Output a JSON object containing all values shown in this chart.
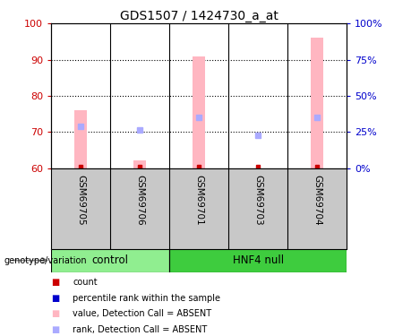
{
  "title": "GDS1507 / 1424730_a_at",
  "samples": [
    "GSM69705",
    "GSM69706",
    "GSM69701",
    "GSM69703",
    "GSM69704"
  ],
  "ylim_left": [
    60,
    100
  ],
  "ylim_right": [
    0,
    100
  ],
  "yticks_left": [
    60,
    70,
    80,
    90,
    100
  ],
  "yticks_right": [
    0,
    25,
    50,
    75,
    100
  ],
  "ytick_labels_right": [
    "0%",
    "25%",
    "50%",
    "75%",
    "100%"
  ],
  "grid_lines": [
    70,
    80,
    90
  ],
  "bar_bottoms": [
    60,
    60,
    60,
    60,
    60
  ],
  "bar_tops": [
    76,
    62,
    91,
    60,
    96
  ],
  "bar_color": "#FFB6C1",
  "blue_square_y": [
    71.5,
    70.5,
    74.0,
    69.0,
    74.0
  ],
  "red_square_y": [
    60.3,
    60.3,
    60.3,
    60.3,
    60.3
  ],
  "control_color": "#90EE90",
  "hnf4_color": "#3ECC3E",
  "sample_bg_color": "#C8C8C8",
  "plot_bg_color": "#FFFFFF",
  "left_axis_color": "#CC0000",
  "right_axis_color": "#0000CC",
  "genotype_label": "genotype/variation",
  "control_label": "control",
  "hnf4_label": "HNF4 null",
  "legend_items": [
    {
      "label": "count",
      "color": "#CC0000"
    },
    {
      "label": "percentile rank within the sample",
      "color": "#0000CC"
    },
    {
      "label": "value, Detection Call = ABSENT",
      "color": "#FFB6C1"
    },
    {
      "label": "rank, Detection Call = ABSENT",
      "color": "#AAAAFF"
    }
  ]
}
